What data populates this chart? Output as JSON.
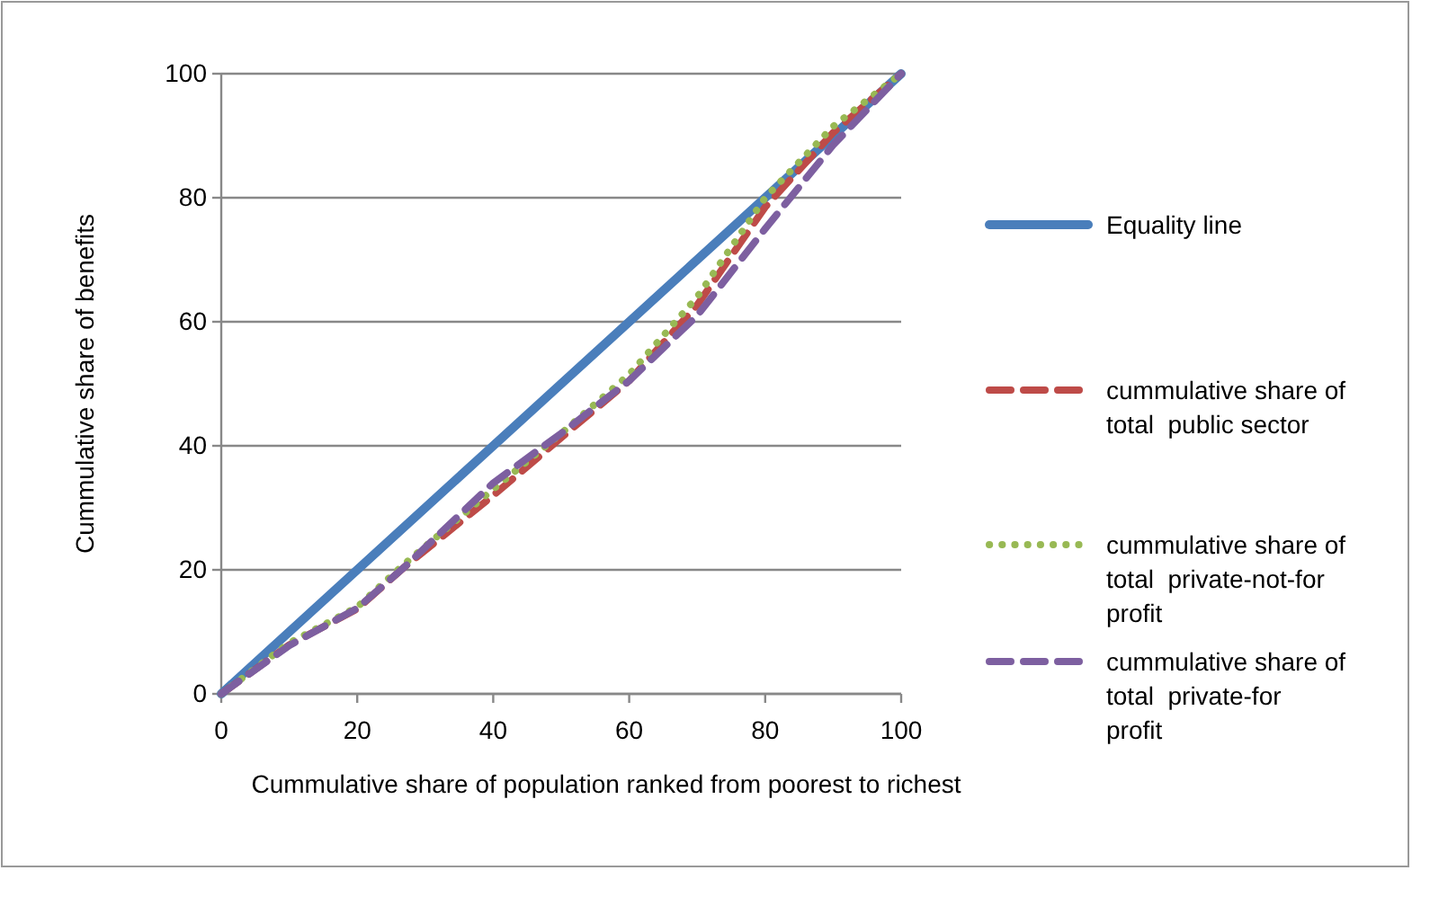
{
  "chart_data": {
    "type": "line",
    "xlabel": "Cummulative share of population ranked from poorest to richest",
    "ylabel": "Cummulative share of benefits",
    "xlim": [
      0,
      100
    ],
    "ylim": [
      0,
      100
    ],
    "xticks": [
      0,
      20,
      40,
      60,
      80,
      100
    ],
    "yticks": [
      0,
      20,
      40,
      60,
      80,
      100
    ],
    "grid": "y",
    "legend": "right",
    "series": [
      {
        "name": "Equality line",
        "color": "#4a7ebb",
        "line_style": "solid",
        "x": [
          0,
          100
        ],
        "values": [
          0,
          100
        ]
      },
      {
        "name": "cummulative share of total  public sector",
        "color": "#be4b48",
        "line_style": "dashed",
        "x": [
          0,
          10,
          20,
          27,
          40,
          50,
          60,
          70,
          80,
          90,
          100
        ],
        "values": [
          0,
          7.9,
          13.7,
          20.5,
          32,
          41.3,
          50.5,
          62.7,
          78.5,
          90.5,
          100
        ]
      },
      {
        "name": "cummulative share of total  private-not-for profit",
        "color": "#98b954",
        "line_style": "dotted",
        "x": [
          0,
          10,
          20,
          27,
          40,
          50,
          60,
          70,
          80,
          90,
          100
        ],
        "values": [
          0,
          8.2,
          14,
          21,
          33,
          42,
          51.5,
          64,
          80,
          91.5,
          100
        ]
      },
      {
        "name": "cummulative share of total  private-for profit",
        "color": "#7d5fa0",
        "line_style": "dashed",
        "x": [
          0,
          10,
          20,
          27,
          40,
          50,
          60,
          70,
          80,
          90,
          100
        ],
        "values": [
          0,
          7.8,
          13.8,
          20.5,
          34,
          42,
          50.5,
          61,
          75,
          88.5,
          100
        ]
      }
    ]
  }
}
